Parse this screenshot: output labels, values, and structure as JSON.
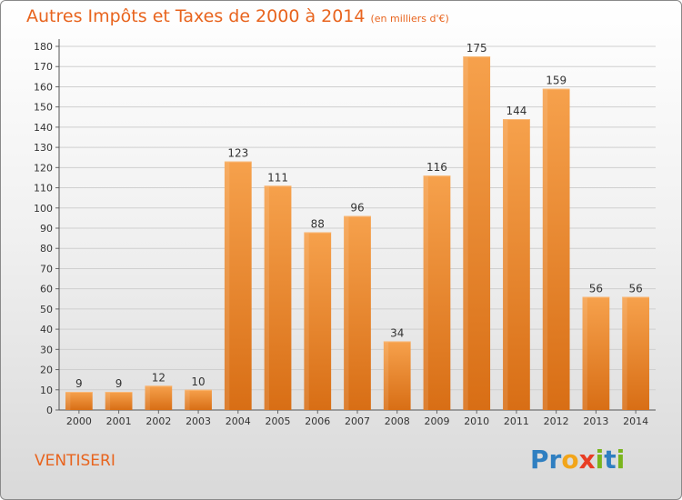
{
  "title": "Autres Impôts et Taxes de 2000 à 2014",
  "subtitle": "(en milliers d'€)",
  "commune": "VENTISERI",
  "logo": {
    "text": "Proxiti",
    "letters": [
      "P",
      "r",
      "o",
      "x",
      "i",
      "t",
      "i"
    ],
    "colors": [
      "#2f7fc1",
      "#2f7fc1",
      "#f2a51a",
      "#e83d24",
      "#7ab51d",
      "#2f7fc1",
      "#7ab51d"
    ]
  },
  "chart_data": {
    "type": "bar",
    "categories": [
      "2000",
      "2001",
      "2002",
      "2003",
      "2004",
      "2005",
      "2006",
      "2007",
      "2008",
      "2009",
      "2010",
      "2011",
      "2012",
      "2013",
      "2014"
    ],
    "values": [
      9,
      9,
      12,
      10,
      123,
      111,
      88,
      96,
      34,
      116,
      175,
      144,
      159,
      56,
      56
    ],
    "data_labels": [
      "9",
      "9",
      "12",
      "10",
      "123",
      "111",
      "88",
      "96",
      "34",
      "116",
      "175",
      "144",
      "159",
      "56",
      "56"
    ],
    "ylim": [
      0,
      180
    ],
    "yticks": [
      "0",
      "10",
      "20",
      "30",
      "40",
      "50",
      "60",
      "70",
      "80",
      "90",
      "100",
      "110",
      "120",
      "130",
      "140",
      "150",
      "160",
      "170",
      "180"
    ],
    "grid": true,
    "bar_color": "#f0902f",
    "bar_color_dark": "#d0701a"
  }
}
